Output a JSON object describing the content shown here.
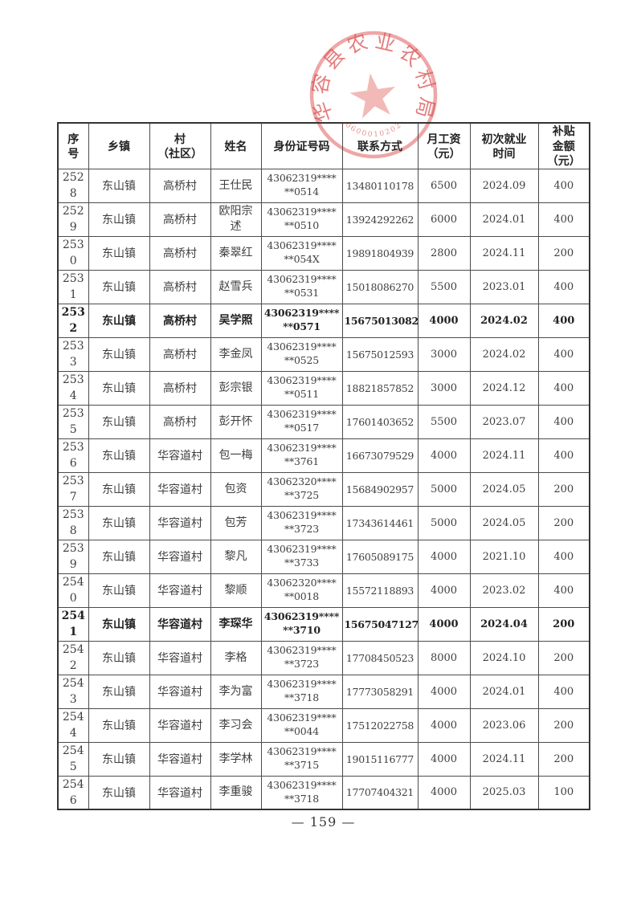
{
  "document": {
    "page_number": "— 159 —"
  },
  "seal": {
    "text": "华容县农业农村局",
    "serial": "06000102027",
    "color": "#db5252"
  },
  "table": {
    "headers": {
      "serial": "序\n号",
      "town": "乡镇",
      "village": "村\n（社区）",
      "name": "姓名",
      "id": "身份证号码",
      "phone": "联系方式",
      "salary": "月工资\n（元）",
      "employment_date": "初次就业\n时间",
      "subsidy": "补贴\n金额\n（元）"
    },
    "rows": [
      {
        "serial": "2528",
        "town": "东山镇",
        "village": "高桥村",
        "name": "王仕民",
        "id": "43062319****\n**0514",
        "phone": "13480110178",
        "salary": "6500",
        "employment_date": "2024.09",
        "subsidy": "400",
        "bold": false
      },
      {
        "serial": "2529",
        "town": "东山镇",
        "village": "高桥村",
        "name": "欧阳宗述",
        "id": "43062319****\n**0510",
        "phone": "13924292262",
        "salary": "6000",
        "employment_date": "2024.01",
        "subsidy": "400",
        "bold": false
      },
      {
        "serial": "2530",
        "town": "东山镇",
        "village": "高桥村",
        "name": "秦翠红",
        "id": "43062319****\n**054X",
        "phone": "19891804939",
        "salary": "2800",
        "employment_date": "2024.11",
        "subsidy": "200",
        "bold": false
      },
      {
        "serial": "2531",
        "town": "东山镇",
        "village": "高桥村",
        "name": "赵雪兵",
        "id": "43062319****\n**0531",
        "phone": "15018086270",
        "salary": "5500",
        "employment_date": "2023.01",
        "subsidy": "400",
        "bold": false
      },
      {
        "serial": "2532",
        "town": "东山镇",
        "village": "高桥村",
        "name": "吴学照",
        "id": "43062319****\n**0571",
        "phone": "15675013082",
        "salary": "4000",
        "employment_date": "2024.02",
        "subsidy": "400",
        "bold": true
      },
      {
        "serial": "2533",
        "town": "东山镇",
        "village": "高桥村",
        "name": "李金凤",
        "id": "43062319****\n**0525",
        "phone": "15675012593",
        "salary": "3000",
        "employment_date": "2024.02",
        "subsidy": "400",
        "bold": false
      },
      {
        "serial": "2534",
        "town": "东山镇",
        "village": "高桥村",
        "name": "彭宗银",
        "id": "43062319****\n**0511",
        "phone": "18821857852",
        "salary": "3000",
        "employment_date": "2024.12",
        "subsidy": "400",
        "bold": false
      },
      {
        "serial": "2535",
        "town": "东山镇",
        "village": "高桥村",
        "name": "彭开怀",
        "id": "43062319****\n**0517",
        "phone": "17601403652",
        "salary": "5500",
        "employment_date": "2023.07",
        "subsidy": "400",
        "bold": false
      },
      {
        "serial": "2536",
        "town": "东山镇",
        "village": "华容道村",
        "name": "包一梅",
        "id": "43062319****\n**3761",
        "phone": "16673079529",
        "salary": "4000",
        "employment_date": "2024.11",
        "subsidy": "400",
        "bold": false
      },
      {
        "serial": "2537",
        "town": "东山镇",
        "village": "华容道村",
        "name": "包资",
        "id": "43062320****\n**3725",
        "phone": "15684902957",
        "salary": "5000",
        "employment_date": "2024.05",
        "subsidy": "200",
        "bold": false
      },
      {
        "serial": "2538",
        "town": "东山镇",
        "village": "华容道村",
        "name": "包芳",
        "id": "43062319****\n**3723",
        "phone": "17343614461",
        "salary": "5000",
        "employment_date": "2024.05",
        "subsidy": "200",
        "bold": false
      },
      {
        "serial": "2539",
        "town": "东山镇",
        "village": "华容道村",
        "name": "黎凡",
        "id": "43062319****\n**3733",
        "phone": "17605089175",
        "salary": "4000",
        "employment_date": "2021.10",
        "subsidy": "400",
        "bold": false
      },
      {
        "serial": "2540",
        "town": "东山镇",
        "village": "华容道村",
        "name": "黎顺",
        "id": "43062320****\n**0018",
        "phone": "15572118893",
        "salary": "4000",
        "employment_date": "2023.02",
        "subsidy": "400",
        "bold": false
      },
      {
        "serial": "2541",
        "town": "东山镇",
        "village": "华容道村",
        "name": "李琛华",
        "id": "43062319****\n**3710",
        "phone": "15675047127",
        "salary": "4000",
        "employment_date": "2024.04",
        "subsidy": "200",
        "bold": true
      },
      {
        "serial": "2542",
        "town": "东山镇",
        "village": "华容道村",
        "name": "李格",
        "id": "43062319****\n**3723",
        "phone": "17708450523",
        "salary": "8000",
        "employment_date": "2024.10",
        "subsidy": "200",
        "bold": false
      },
      {
        "serial": "2543",
        "town": "东山镇",
        "village": "华容道村",
        "name": "李为富",
        "id": "43062319****\n**3718",
        "phone": "17773058291",
        "salary": "4000",
        "employment_date": "2024.01",
        "subsidy": "400",
        "bold": false
      },
      {
        "serial": "2544",
        "town": "东山镇",
        "village": "华容道村",
        "name": "李习会",
        "id": "43062319****\n**0044",
        "phone": "17512022758",
        "salary": "4000",
        "employment_date": "2023.06",
        "subsidy": "200",
        "bold": false
      },
      {
        "serial": "2545",
        "town": "东山镇",
        "village": "华容道村",
        "name": "李学林",
        "id": "43062319****\n**3715",
        "phone": "19015116777",
        "salary": "4000",
        "employment_date": "2024.11",
        "subsidy": "200",
        "bold": false
      },
      {
        "serial": "2546",
        "town": "东山镇",
        "village": "华容道村",
        "name": "李重骏",
        "id": "43062319****\n**3718",
        "phone": "17707404321",
        "salary": "4000",
        "employment_date": "2025.03",
        "subsidy": "100",
        "bold": false
      }
    ]
  }
}
